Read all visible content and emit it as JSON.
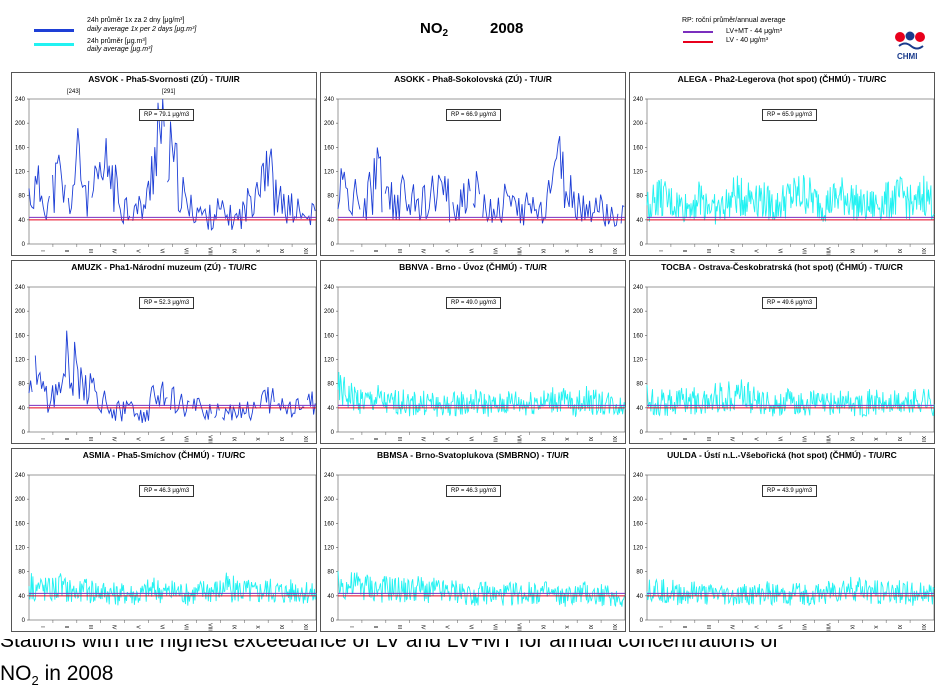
{
  "header": {
    "legend_daily_1x2": "24h průměr 1x za 2 dny [μg/m³]",
    "legend_daily_1x2_en": "daily average 1x per 2 days [μg.m³]",
    "legend_daily": "24h průměr [μg.m³]",
    "legend_daily_en": "daily average [μg.m³]",
    "pollutant": "NO",
    "pollutant_sub": "2",
    "year": "2008",
    "rp_label": "RP: roční průměr/annual average",
    "lv_mt_label": "LV+MT - 44 μg/m³",
    "lv_label": "LV - 40 μg/m³",
    "logo_text": "CHMI"
  },
  "colors": {
    "daily_1x2": "#1e3fd6",
    "daily": "#22f2f2",
    "lv_mt": "#7b2fbe",
    "lv": "#e8001c"
  },
  "caption": {
    "line1": "Stations with the highest exceedance of LV and LV+MT for annual concentrations of",
    "line2_a": "NO",
    "line2_sub": "2",
    "line2_b": " in 2008"
  },
  "chart_data": [
    {
      "type": "line",
      "title": "ASVOK - Pha5-Svornosti (ZÚ) - T/U/IR",
      "rp": "RP = 79.1 μg/m3",
      "series_kind": "daily_1x2",
      "ylim": [
        0,
        240
      ],
      "yticks": [
        0,
        40,
        80,
        120,
        160,
        200,
        240
      ],
      "months": [
        "I",
        "II",
        "III",
        "IV",
        "V",
        "VI",
        "VII",
        "VIII",
        "IX",
        "X",
        "XI",
        "XII"
      ],
      "lv": 40,
      "lv_mt": 44,
      "annotations": [
        "[243]",
        "[291]"
      ],
      "anchors": [
        80,
        90,
        70,
        110,
        60,
        140,
        70,
        95,
        130,
        75,
        60,
        55,
        70,
        200,
        150,
        110,
        55,
        60,
        40,
        55,
        45,
        40,
        60,
        110,
        150,
        70,
        60,
        55,
        40,
        50
      ]
    },
    {
      "type": "line",
      "title": "ASOKK - Pha8-Sokolovská (ZÚ) - T/U/R",
      "rp": "RP = 66.9 μg/m3",
      "series_kind": "daily_1x2",
      "ylim": [
        0,
        240
      ],
      "yticks": [
        0,
        40,
        80,
        120,
        160,
        200,
        240
      ],
      "months": [
        "I",
        "II",
        "III",
        "IV",
        "V",
        "VI",
        "VII",
        "VIII",
        "IX",
        "X",
        "XI",
        "XII"
      ],
      "lv": 40,
      "lv_mt": 44,
      "annotations": [],
      "anchors": [
        95,
        85,
        70,
        75,
        110,
        95,
        65,
        85,
        80,
        60,
        90,
        75,
        60,
        85,
        110,
        60,
        55,
        75,
        50,
        65,
        55,
        60,
        140,
        90,
        70,
        55,
        60,
        50,
        40,
        45
      ]
    },
    {
      "type": "line",
      "title": "ALEGA - Pha2-Legerova (hot spot) (ČHMÚ) - T/U/RC",
      "rp": "RP = 65.9 μg/m3",
      "series_kind": "daily",
      "ylim": [
        0,
        240
      ],
      "yticks": [
        0,
        40,
        80,
        120,
        160,
        200,
        240
      ],
      "months": [
        "I",
        "II",
        "III",
        "IV",
        "V",
        "VI",
        "VII",
        "VIII",
        "IX",
        "X",
        "XI",
        "XII"
      ],
      "lv": 40,
      "lv_mt": 44,
      "annotations": [],
      "anchors": [
        60,
        80,
        70,
        65,
        60,
        75,
        70,
        55,
        65,
        80,
        75,
        85,
        70,
        60,
        75,
        80,
        85,
        70,
        65,
        75,
        80,
        70,
        60,
        65,
        70,
        75,
        80,
        60,
        85,
        65
      ]
    },
    {
      "type": "line",
      "title": "AMUZK - Pha1-Národní muzeum (ZÚ) - T/U/RC",
      "rp": "RP = 52.3 μg/m3",
      "series_kind": "daily_1x2",
      "ylim": [
        0,
        240
      ],
      "yticks": [
        0,
        40,
        80,
        120,
        160,
        200,
        240
      ],
      "months": [
        "I",
        "II",
        "III",
        "IV",
        "V",
        "VI",
        "VII",
        "VIII",
        "IX",
        "X",
        "XI",
        "XII"
      ],
      "lv": 40,
      "lv_mt": 44,
      "annotations": [],
      "anchors": [
        120,
        70,
        55,
        60,
        140,
        90,
        75,
        60,
        40,
        35,
        35,
        30,
        30,
        80,
        60,
        45,
        40,
        38,
        35,
        40,
        35,
        38,
        40,
        35,
        55,
        45,
        40,
        45,
        40,
        50
      ]
    },
    {
      "type": "line",
      "title": "BBNVA - Brno - Úvoz (ČHMÚ) - T/U/R",
      "rp": "RP = 49.0 μg/m3",
      "series_kind": "daily",
      "ylim": [
        0,
        240
      ],
      "yticks": [
        0,
        40,
        80,
        120,
        160,
        200,
        240
      ],
      "months": [
        "I",
        "II",
        "III",
        "IV",
        "V",
        "VI",
        "VII",
        "VIII",
        "IX",
        "X",
        "XI",
        "XII"
      ],
      "lv": 40,
      "lv_mt": 44,
      "annotations": [],
      "anchors": [
        70,
        60,
        55,
        50,
        55,
        45,
        50,
        48,
        45,
        50,
        45,
        42,
        48,
        45,
        50,
        45,
        42,
        48,
        50,
        45,
        52,
        48,
        55,
        50,
        45,
        55,
        50,
        48,
        45,
        40
      ]
    },
    {
      "type": "line",
      "title": "TOCBA - Ostrava-Českobratrská (hot spot) (ČHMÚ) - T/U/CR",
      "rp": "RP = 49.6 μg/m3",
      "series_kind": "daily",
      "ylim": [
        0,
        240
      ],
      "yticks": [
        0,
        40,
        80,
        120,
        160,
        200,
        240
      ],
      "months": [
        "I",
        "II",
        "III",
        "IV",
        "V",
        "VI",
        "VII",
        "VIII",
        "IX",
        "X",
        "XI",
        "XII"
      ],
      "lv": 40,
      "lv_mt": 44,
      "annotations": [],
      "anchors": [
        55,
        50,
        48,
        52,
        55,
        50,
        48,
        60,
        55,
        70,
        60,
        50,
        48,
        45,
        50,
        48,
        45,
        50,
        45,
        48,
        50,
        45,
        48,
        50,
        45,
        48,
        45,
        50,
        55,
        45
      ]
    },
    {
      "type": "line",
      "title": "ASMIA - Pha5-Smíchov (ČHMÚ) - T/U/RC",
      "rp": "RP = 46.3 μg/m3",
      "series_kind": "daily",
      "ylim": [
        0,
        240
      ],
      "yticks": [
        0,
        40,
        80,
        120,
        160,
        200,
        240
      ],
      "months": [
        "I",
        "II",
        "III",
        "IV",
        "V",
        "VI",
        "VII",
        "VIII",
        "IX",
        "X",
        "XI",
        "XII"
      ],
      "lv": 40,
      "lv_mt": 44,
      "annotations": [],
      "anchors": [
        60,
        55,
        50,
        55,
        50,
        45,
        50,
        48,
        45,
        42,
        45,
        40,
        48,
        50,
        45,
        48,
        42,
        45,
        50,
        48,
        55,
        50,
        48,
        45,
        50,
        48,
        45,
        50,
        48,
        40
      ]
    },
    {
      "type": "line",
      "title": "BBMSA - Brno-Svatoplukova (SMBRNO) - T/U/R",
      "rp": "RP = 46.3 μg/m3",
      "series_kind": "daily",
      "ylim": [
        0,
        240
      ],
      "yticks": [
        0,
        40,
        80,
        120,
        160,
        200,
        240
      ],
      "months": [
        "I",
        "II",
        "III",
        "IV",
        "V",
        "VI",
        "VII",
        "VIII",
        "IX",
        "X",
        "XI",
        "XII"
      ],
      "lv": 40,
      "lv_mt": 44,
      "annotations": [],
      "anchors": [
        60,
        55,
        58,
        55,
        50,
        52,
        50,
        48,
        52,
        50,
        48,
        45,
        48,
        45,
        42,
        45,
        40,
        42,
        45,
        42,
        48,
        45,
        40,
        38,
        42,
        45,
        40,
        42,
        38,
        35
      ]
    },
    {
      "type": "line",
      "title": "UULDA - Ústí n.L.-Všebořická (hot spot) (ČHMÚ) - T/U/RC",
      "rp": "RP = 43.9 μg/m3",
      "series_kind": "daily",
      "ylim": [
        0,
        240
      ],
      "yticks": [
        0,
        40,
        80,
        120,
        160,
        200,
        240
      ],
      "months": [
        "I",
        "II",
        "III",
        "IV",
        "V",
        "VI",
        "VII",
        "VIII",
        "IX",
        "X",
        "XI",
        "XII"
      ],
      "lv": 40,
      "lv_mt": 44,
      "annotations": [],
      "anchors": [
        55,
        50,
        48,
        45,
        42,
        45,
        40,
        42,
        40,
        38,
        42,
        40,
        45,
        42,
        40,
        45,
        42,
        40,
        45,
        48,
        50,
        52,
        50,
        48,
        45,
        48,
        45,
        42,
        45,
        40
      ]
    }
  ]
}
